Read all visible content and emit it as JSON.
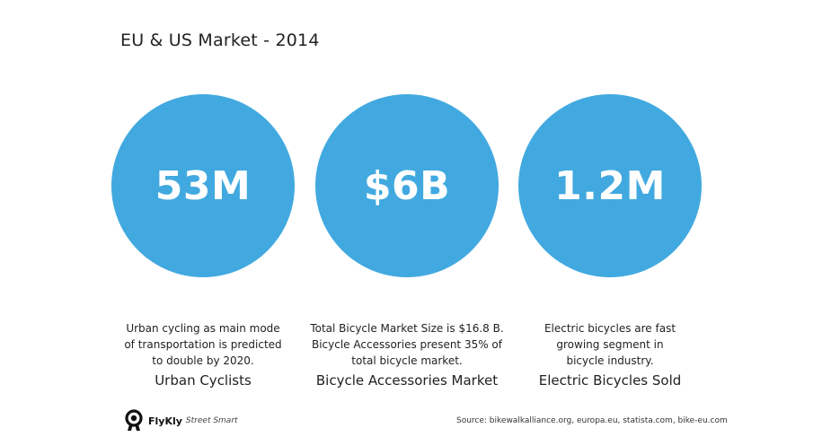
{
  "title": "EU & US Market - 2014",
  "accent_color": "#41a9e0",
  "stats": [
    {
      "value": "53M",
      "label": "Urban Cyclists",
      "description_lines": [
        "Urban cycling as main mode",
        "of transportation is predicted",
        "to double by 2020."
      ]
    },
    {
      "value": "$6B",
      "label": "Bicycle Accessories Market",
      "description_lines": [
        "Total Bicycle Market Size is $16.8 B.",
        "Bicycle Accessories present 35% of",
        "total bicycle market."
      ]
    },
    {
      "value": "1.2M",
      "label": "Electric Bicycles Sold",
      "description_lines": [
        "Electric bicycles are fast",
        "growing segment in",
        "bicycle industry."
      ]
    }
  ],
  "footer": {
    "brand": "FlyKly",
    "tagline": "Street Smart",
    "logo_icon": "flykly-logo-icon",
    "source": "Source: bikewalkalliance.org, europa.eu, statista.com, bike-eu.com"
  }
}
